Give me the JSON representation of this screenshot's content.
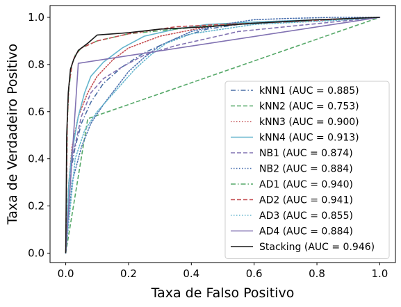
{
  "chart_data": {
    "type": "line",
    "title": "",
    "xlabel": "Taxa de Falso Positivo",
    "ylabel": "Taxa de Verdadeiro Positivo",
    "xlim": [
      -0.05,
      1.05
    ],
    "ylim": [
      -0.04,
      1.05
    ],
    "xticks": [
      0.0,
      0.2,
      0.4,
      0.6,
      0.8,
      1.0
    ],
    "yticks": [
      0.0,
      0.2,
      0.4,
      0.6,
      0.8,
      1.0
    ],
    "xtick_labels": [
      "0.0",
      "0.2",
      "0.4",
      "0.6",
      "0.8",
      "1.0"
    ],
    "ytick_labels": [
      "0.0",
      "0.2",
      "0.4",
      "0.6",
      "0.8",
      "1.0"
    ],
    "grid": false,
    "legend_position": "lower-right",
    "series": [
      {
        "name": "kNN1 (AUC = 0.885)",
        "color": "#4a6fa5",
        "dash": "dashdot",
        "x": [
          0,
          0.01,
          0.03,
          0.05,
          0.08,
          0.12,
          0.18,
          0.25,
          0.35,
          0.45,
          0.55,
          0.7,
          0.85,
          1.0
        ],
        "y": [
          0,
          0.3,
          0.45,
          0.55,
          0.64,
          0.72,
          0.79,
          0.85,
          0.91,
          0.95,
          0.97,
          0.98,
          0.99,
          1.0
        ]
      },
      {
        "name": "kNN2 (AUC = 0.753)",
        "color": "#55a868",
        "dash": "dashed",
        "x": [
          0,
          0.07,
          1.0
        ],
        "y": [
          0,
          0.57,
          1.0
        ]
      },
      {
        "name": "kNN3 (AUC = 0.900)",
        "color": "#c44e52",
        "dash": "dotted",
        "x": [
          0,
          0.01,
          0.02,
          0.04,
          0.07,
          0.1,
          0.15,
          0.2,
          0.3,
          0.45,
          0.6,
          0.8,
          1.0
        ],
        "y": [
          0,
          0.3,
          0.45,
          0.58,
          0.68,
          0.75,
          0.82,
          0.87,
          0.92,
          0.96,
          0.98,
          0.99,
          1.0
        ]
      },
      {
        "name": "kNN4 (AUC = 0.913)",
        "color": "#64b5cd",
        "dash": "solid",
        "x": [
          0,
          0.01,
          0.02,
          0.04,
          0.06,
          0.08,
          0.12,
          0.18,
          0.25,
          0.35,
          0.45,
          0.6,
          0.8,
          1.0
        ],
        "y": [
          0,
          0.3,
          0.43,
          0.58,
          0.68,
          0.75,
          0.81,
          0.87,
          0.92,
          0.95,
          0.97,
          0.98,
          0.99,
          1.0
        ]
      },
      {
        "name": "NB1 (AUC = 0.874)",
        "color": "#8172b2",
        "dash": "dashed",
        "x": [
          0,
          0.02,
          0.05,
          0.08,
          0.12,
          0.18,
          0.25,
          0.35,
          0.45,
          0.55,
          0.7,
          0.85,
          1.0
        ],
        "y": [
          0,
          0.4,
          0.58,
          0.68,
          0.74,
          0.79,
          0.84,
          0.88,
          0.91,
          0.94,
          0.96,
          0.98,
          1.0
        ]
      },
      {
        "name": "NB2 (AUC = 0.884)",
        "color": "#4c72b0",
        "dash": "dotted",
        "x": [
          0,
          0.02,
          0.05,
          0.08,
          0.12,
          0.16,
          0.2,
          0.25,
          0.3,
          0.4,
          0.5,
          0.6,
          0.7,
          0.85,
          1.0
        ],
        "y": [
          0,
          0.3,
          0.45,
          0.55,
          0.63,
          0.7,
          0.77,
          0.83,
          0.88,
          0.94,
          0.97,
          0.99,
          0.995,
          1.0,
          1.0
        ]
      },
      {
        "name": "AD1 (AUC = 0.940)",
        "color": "#55a868",
        "dash": "dashdot",
        "x": [
          0,
          0.005,
          0.01,
          0.02,
          0.03,
          0.05,
          0.1,
          0.2,
          0.35,
          0.5,
          0.7,
          0.85,
          1.0
        ],
        "y": [
          0,
          0.55,
          0.7,
          0.8,
          0.84,
          0.87,
          0.9,
          0.93,
          0.95,
          0.97,
          0.98,
          0.99,
          1.0
        ]
      },
      {
        "name": "AD2 (AUC = 0.941)",
        "color": "#c44e52",
        "dash": "dashed",
        "x": [
          0,
          0.005,
          0.01,
          0.02,
          0.03,
          0.05,
          0.1,
          0.2,
          0.35,
          0.5,
          0.7,
          0.85,
          1.0
        ],
        "y": [
          0,
          0.56,
          0.71,
          0.8,
          0.84,
          0.87,
          0.9,
          0.93,
          0.96,
          0.97,
          0.98,
          0.99,
          1.0
        ]
      },
      {
        "name": "AD3 (AUC = 0.855)",
        "color": "#64b5cd",
        "dash": "dotted",
        "x": [
          0,
          0.03,
          0.06,
          0.1,
          0.14,
          0.18,
          0.22,
          0.27,
          0.32,
          0.4,
          0.5,
          0.6,
          0.75,
          0.9,
          1.0
        ],
        "y": [
          0,
          0.4,
          0.52,
          0.6,
          0.66,
          0.72,
          0.78,
          0.84,
          0.89,
          0.93,
          0.95,
          0.97,
          0.98,
          0.99,
          1.0
        ]
      },
      {
        "name": "AD4 (AUC = 0.884)",
        "color": "#8172b2",
        "dash": "solid",
        "x": [
          0,
          0.04,
          1.0
        ],
        "y": [
          0,
          0.805,
          1.0
        ]
      },
      {
        "name": "Stacking (AUC = 0.946)",
        "color": "#1a1a1a",
        "dash": "solid",
        "x": [
          0,
          0.003,
          0.008,
          0.015,
          0.025,
          0.04,
          0.07,
          0.1,
          0.2,
          0.3,
          0.45,
          0.6,
          0.8,
          1.0
        ],
        "y": [
          0,
          0.5,
          0.68,
          0.78,
          0.82,
          0.86,
          0.89,
          0.925,
          0.935,
          0.95,
          0.96,
          0.975,
          0.99,
          1.0
        ]
      }
    ]
  }
}
